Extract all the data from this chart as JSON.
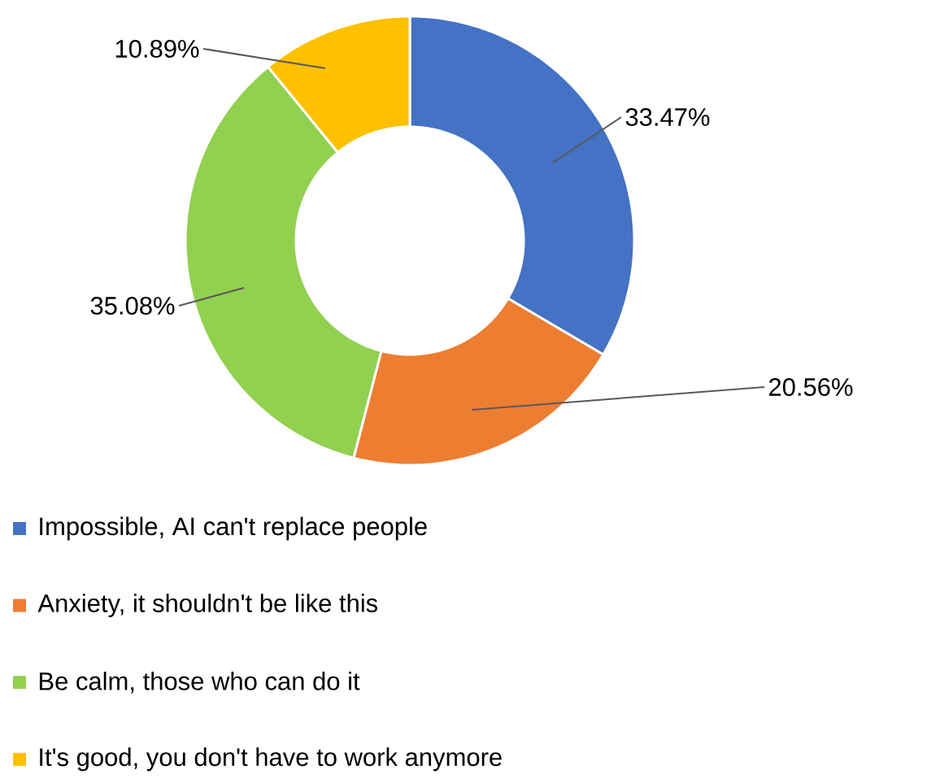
{
  "chart_data": {
    "type": "donut",
    "categories": [
      "Impossible, AI can't replace people",
      "Anxiety, it shouldn't be like this",
      "Be calm, those who can do it",
      "It's good, you don't have to work anymore"
    ],
    "values": [
      33.47,
      20.56,
      35.08,
      10.89
    ],
    "colors": [
      "#4472c4",
      "#ed7d31",
      "#92d050",
      "#ffc000"
    ],
    "value_labels": [
      "33.47%",
      "20.56%",
      "35.08%",
      "10.89%"
    ],
    "legend": "bottom"
  }
}
